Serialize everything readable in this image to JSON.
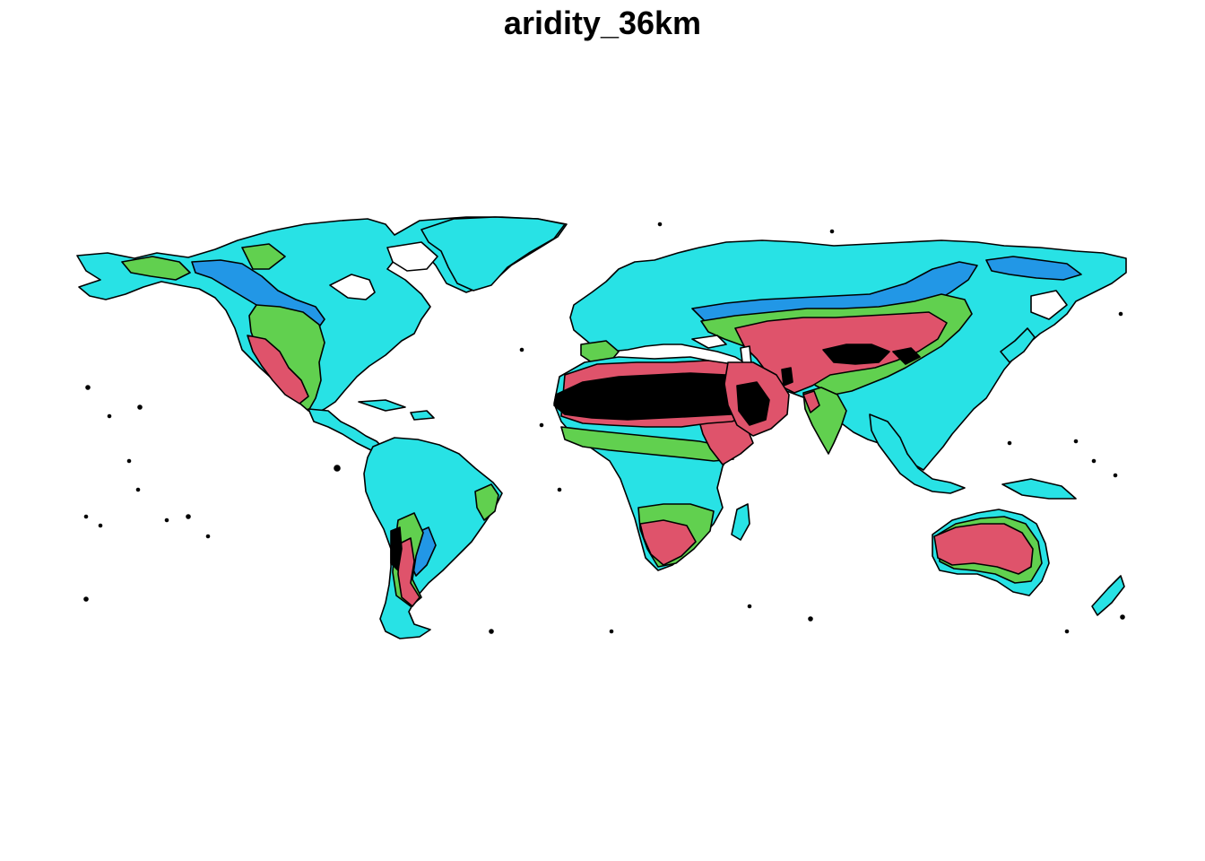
{
  "title": "aridity_36km",
  "colors": {
    "hyper_arid": "#000000",
    "arid": "#DF536B",
    "semi_arid": "#61D04F",
    "dry_subhumid": "#2297E6",
    "humid": "#28E2E5",
    "no_data": "#FFFFFF"
  }
}
